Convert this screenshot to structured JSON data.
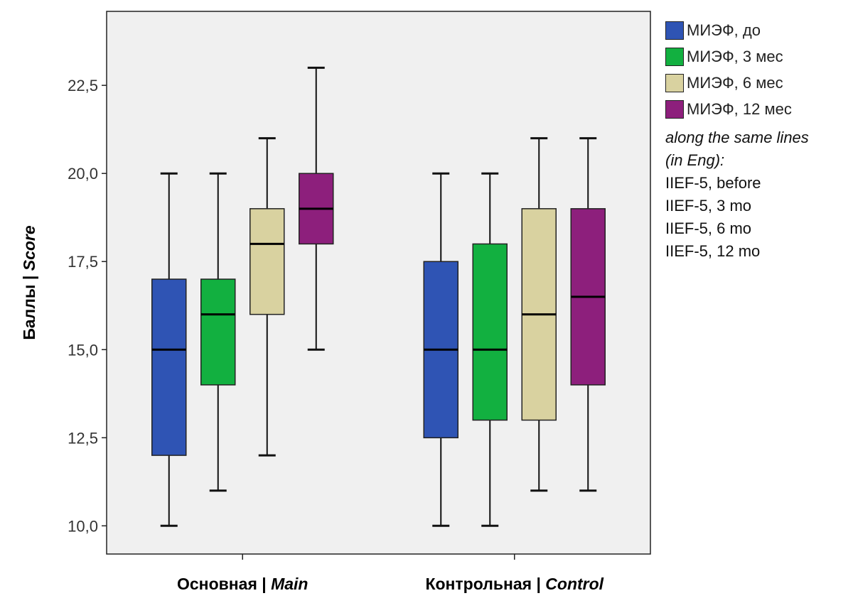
{
  "chart_data": {
    "type": "box",
    "ylabel_main": "Баллы | ",
    "ylabel_italic": "Score",
    "ylim": [
      9.2,
      24.6
    ],
    "yticks": [
      10.0,
      12.5,
      15.0,
      17.5,
      20.0,
      22.5
    ],
    "ytick_labels": [
      "10,0",
      "12,5",
      "15,0",
      "17,5",
      "20,0",
      "22,5"
    ],
    "grid": false,
    "legend_position": "right",
    "categories": [
      {
        "main": "Основная | ",
        "italic": "Main"
      },
      {
        "main": "Контрольная | ",
        "italic": "Control"
      }
    ],
    "series": [
      {
        "name": "МИЭФ, до",
        "color": "#2f54b4",
        "boxes": [
          {
            "min": 10,
            "q1": 12,
            "median": 15,
            "q3": 17,
            "max": 20
          },
          {
            "min": 10,
            "q1": 12.5,
            "median": 15,
            "q3": 17.5,
            "max": 20
          }
        ]
      },
      {
        "name": "МИЭФ, 3 мес",
        "color": "#12b040",
        "boxes": [
          {
            "min": 11,
            "q1": 14,
            "median": 16,
            "q3": 17,
            "max": 20
          },
          {
            "min": 10,
            "q1": 13,
            "median": 15,
            "q3": 18,
            "max": 20
          }
        ]
      },
      {
        "name": "МИЭФ, 6 мес",
        "color": "#d9d2a0",
        "boxes": [
          {
            "min": 12,
            "q1": 16,
            "median": 18,
            "q3": 19,
            "max": 21
          },
          {
            "min": 11,
            "q1": 13,
            "median": 16,
            "q3": 19,
            "max": 21
          }
        ]
      },
      {
        "name": "МИЭФ, 12 мес",
        "color": "#8d1f7c",
        "boxes": [
          {
            "min": 15,
            "q1": 18,
            "median": 19,
            "q3": 20,
            "max": 23
          },
          {
            "min": 11,
            "q1": 14,
            "median": 16.5,
            "q3": 19,
            "max": 21
          }
        ]
      }
    ]
  },
  "legend_note": {
    "title_line1": "along the same lines",
    "title_line2": "(in Eng):",
    "lines": [
      "IIEF-5, before",
      "IIEF-5, 3 mo",
      "IIEF-5, 6 mo",
      "IIEF-5, 12 mo"
    ]
  }
}
